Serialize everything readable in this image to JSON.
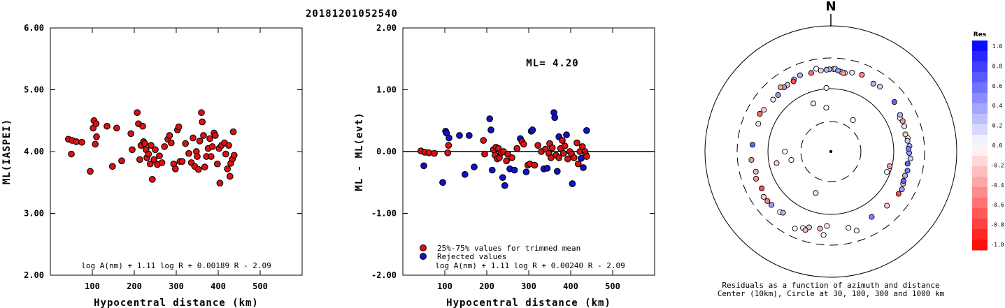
{
  "page": {
    "title": "20181201052540"
  },
  "colors": {
    "accepted": "#dd1111",
    "rejected": "#1111cc",
    "marker_edge": "#000000"
  },
  "chart_data": [
    {
      "id": "left",
      "type": "scatter",
      "xlabel": "Hypocentral distance (km)",
      "ylabel": "ML(IASPEI)",
      "xlim": [
        0,
        600
      ],
      "ylim": [
        2.0,
        6.0
      ],
      "xticks": [
        100,
        200,
        300,
        400,
        500
      ],
      "yticks": [
        2.0,
        3.0,
        4.0,
        5.0,
        6.0
      ],
      "ytick_labels": [
        "2.00",
        "3.00",
        "4.00",
        "5.00",
        "6.00"
      ],
      "formula": "log A(nm) + 1.11 log R + 0.00189 R - 2.09",
      "points": [
        [
          43,
          4.2
        ],
        [
          50,
          3.96
        ],
        [
          52,
          4.18
        ],
        [
          62,
          4.16
        ],
        [
          75,
          4.15
        ],
        [
          95,
          3.68
        ],
        [
          102,
          4.38
        ],
        [
          104,
          4.5
        ],
        [
          107,
          4.12
        ],
        [
          109,
          4.45
        ],
        [
          110,
          4.24
        ],
        [
          135,
          4.41
        ],
        [
          148,
          3.76
        ],
        [
          158,
          4.38
        ],
        [
          170,
          3.85
        ],
        [
          192,
          4.29
        ],
        [
          195,
          4.03
        ],
        [
          207,
          4.63
        ],
        [
          210,
          4.45
        ],
        [
          213,
          3.87
        ],
        [
          216,
          4.1
        ],
        [
          220,
          4.41
        ],
        [
          222,
          4.16
        ],
        [
          225,
          4.13
        ],
        [
          228,
          4.03
        ],
        [
          230,
          3.9
        ],
        [
          234,
          3.96
        ],
        [
          238,
          3.8
        ],
        [
          240,
          4.1
        ],
        [
          243,
          3.55
        ],
        [
          247,
          3.87
        ],
        [
          250,
          4.03
        ],
        [
          255,
          3.79
        ],
        [
          260,
          3.93
        ],
        [
          266,
          3.82
        ],
        [
          272,
          4.08
        ],
        [
          280,
          4.2
        ],
        [
          284,
          4.26
        ],
        [
          288,
          4.14
        ],
        [
          294,
          3.8
        ],
        [
          298,
          3.72
        ],
        [
          303,
          4.35
        ],
        [
          306,
          4.4
        ],
        [
          309,
          3.84
        ],
        [
          314,
          3.84
        ],
        [
          322,
          4.13
        ],
        [
          330,
          3.97
        ],
        [
          336,
          3.82
        ],
        [
          340,
          4.22
        ],
        [
          344,
          3.76
        ],
        [
          348,
          4.0
        ],
        [
          350,
          3.92
        ],
        [
          353,
          3.71
        ],
        [
          356,
          4.17
        ],
        [
          360,
          4.63
        ],
        [
          362,
          4.48
        ],
        [
          365,
          4.26
        ],
        [
          368,
          3.75
        ],
        [
          372,
          3.92
        ],
        [
          376,
          4.05
        ],
        [
          380,
          4.21
        ],
        [
          383,
          3.92
        ],
        [
          386,
          4.08
        ],
        [
          390,
          4.3
        ],
        [
          393,
          4.26
        ],
        [
          398,
          3.8
        ],
        [
          402,
          4.05
        ],
        [
          404,
          3.49
        ],
        [
          408,
          4.1
        ],
        [
          415,
          4.14
        ],
        [
          418,
          3.96
        ],
        [
          422,
          3.72
        ],
        [
          425,
          4.1
        ],
        [
          428,
          3.6
        ],
        [
          430,
          3.81
        ],
        [
          434,
          3.88
        ],
        [
          436,
          4.32
        ],
        [
          438,
          3.94
        ]
      ]
    },
    {
      "id": "middle",
      "type": "scatter",
      "xlabel": "Hypocentral distance (km)",
      "ylabel": "ML - ML(evt)",
      "xlim": [
        0,
        600
      ],
      "ylim": [
        -2.0,
        2.0
      ],
      "xticks": [
        100,
        200,
        300,
        400,
        500
      ],
      "yticks": [
        -2.0,
        -1.0,
        0.0,
        1.0,
        2.0
      ],
      "ytick_labels": [
        "-2.00",
        "-1.00",
        "0.00",
        "1.00",
        "2.00"
      ],
      "zero_line": 0.0,
      "ml_label": "ML= 4.20",
      "formula": "log A(nm) + 1.11 log R + 0.00240 R - 2.09",
      "legend": {
        "accepted_label": "25%-75% values for trimmed mean",
        "rejected_label": "Rejected values"
      },
      "accepted": [
        [
          43,
          0.01
        ],
        [
          52,
          -0.01
        ],
        [
          62,
          -0.02
        ],
        [
          75,
          -0.03
        ],
        [
          107,
          -0.02
        ],
        [
          109,
          0.1
        ],
        [
          192,
          0.18
        ],
        [
          195,
          -0.04
        ],
        [
          216,
          0.03
        ],
        [
          220,
          -0.06
        ],
        [
          222,
          0.07
        ],
        [
          225,
          -0.12
        ],
        [
          228,
          0.05
        ],
        [
          230,
          -0.1
        ],
        [
          234,
          -0.02
        ],
        [
          240,
          0.0
        ],
        [
          247,
          -0.15
        ],
        [
          250,
          -0.04
        ],
        [
          260,
          -0.1
        ],
        [
          272,
          0.05
        ],
        [
          284,
          0.16
        ],
        [
          288,
          0.12
        ],
        [
          298,
          -0.22
        ],
        [
          303,
          -0.2
        ],
        [
          314,
          -0.22
        ],
        [
          322,
          0.1
        ],
        [
          330,
          0.0
        ],
        [
          340,
          0.04
        ],
        [
          348,
          -0.03
        ],
        [
          350,
          0.13
        ],
        [
          353,
          -0.1
        ],
        [
          356,
          0.06
        ],
        [
          365,
          -0.06
        ],
        [
          372,
          -0.1
        ],
        [
          376,
          0.05
        ],
        [
          380,
          0.18
        ],
        [
          383,
          -0.03
        ],
        [
          386,
          0.09
        ],
        [
          393,
          -0.12
        ],
        [
          398,
          0.0
        ],
        [
          402,
          -0.04
        ],
        [
          408,
          -0.1
        ],
        [
          415,
          0.14
        ],
        [
          418,
          -0.2
        ],
        [
          422,
          0.0
        ],
        [
          428,
          0.08
        ],
        [
          434,
          0.0
        ],
        [
          436,
          -0.05
        ],
        [
          438,
          -0.08
        ]
      ],
      "rejected": [
        [
          50,
          -0.23
        ],
        [
          95,
          -0.5
        ],
        [
          102,
          0.33
        ],
        [
          104,
          0.3
        ],
        [
          110,
          0.22
        ],
        [
          135,
          0.26
        ],
        [
          148,
          -0.37
        ],
        [
          158,
          0.26
        ],
        [
          170,
          -0.25
        ],
        [
          207,
          0.53
        ],
        [
          210,
          0.35
        ],
        [
          213,
          -0.3
        ],
        [
          238,
          -0.42
        ],
        [
          243,
          -0.55
        ],
        [
          255,
          -0.28
        ],
        [
          266,
          -0.3
        ],
        [
          280,
          0.21
        ],
        [
          294,
          -0.33
        ],
        [
          306,
          0.33
        ],
        [
          309,
          0.35
        ],
        [
          336,
          -0.28
        ],
        [
          344,
          -0.27
        ],
        [
          360,
          0.63
        ],
        [
          362,
          0.55
        ],
        [
          368,
          -0.32
        ],
        [
          372,
          0.24
        ],
        [
          390,
          0.27
        ],
        [
          404,
          -0.52
        ],
        [
          425,
          -0.11
        ],
        [
          430,
          -0.26
        ],
        [
          438,
          0.34
        ]
      ]
    },
    {
      "id": "polar",
      "type": "scatter",
      "north_label": "N",
      "caption_line1": "Residuals as a function of azimuth and distance",
      "caption_line2": "Center (10km), Circle at 30, 100, 300 and 1000 km",
      "rings_km": [
        10,
        30,
        100,
        300,
        1000
      ],
      "ring_styles": [
        "center",
        "dashed",
        "solid",
        "dashed",
        "solid"
      ],
      "colorbar": {
        "title": "Res",
        "min": -1.0,
        "max": 1.0,
        "labels": [
          "1.0",
          "0.8",
          "0.6",
          "0.4",
          "0.2",
          "0.0",
          "-0.2",
          "-0.4",
          "-0.6",
          "-0.8",
          "-1.0"
        ]
      },
      "points": [
        [
          -36,
          208,
          0.4
        ],
        [
          -28,
          208,
          -0.7
        ],
        [
          -22,
          226,
          0.3
        ],
        [
          -14,
          218,
          -0.6
        ],
        [
          -7,
          222,
          -0.2
        ],
        [
          -3,
          224,
          0.3
        ],
        [
          -1,
          226,
          0.2
        ],
        [
          2,
          228,
          -0.2
        ],
        [
          3,
          230,
          0.2
        ],
        [
          5,
          220,
          0.4
        ],
        [
          7,
          215,
          0.0
        ],
        [
          9,
          208,
          -0.4
        ],
        [
          10,
          211,
          0.0
        ],
        [
          15,
          223,
          0.1
        ],
        [
          22,
          230,
          -0.5
        ],
        [
          32,
          212,
          0.3
        ],
        [
          37,
          220,
          0.2
        ],
        [
          52,
          215,
          0.6
        ],
        [
          62,
          200,
          0.3
        ],
        [
          64,
          190,
          0.0
        ],
        [
          67,
          198,
          -0.4
        ],
        [
          71,
          196,
          0.1
        ],
        [
          77,
          188,
          -0.2
        ],
        [
          80,
          198,
          0.0
        ],
        [
          82,
          194,
          0.2
        ],
        [
          86,
          203,
          0.3
        ],
        [
          88,
          196,
          0.5
        ],
        [
          91,
          200,
          0.4
        ],
        [
          95,
          210,
          0.2
        ],
        [
          99,
          196,
          0.6
        ],
        [
          104,
          204,
          0.5
        ],
        [
          108,
          198,
          0.3
        ],
        [
          112,
          200,
          0.6
        ],
        [
          114,
          205,
          -0.3
        ],
        [
          118,
          214,
          0.4
        ],
        [
          122,
          210,
          -0.7
        ],
        [
          134,
          198,
          -0.2
        ],
        [
          148,
          192,
          0.5
        ],
        [
          162,
          232,
          0.0
        ],
        [
          167,
          200,
          0.0
        ],
        [
          183,
          176,
          -0.1
        ],
        [
          185,
          236,
          0.0
        ],
        [
          188,
          198,
          -0.3
        ],
        [
          196,
          204,
          0.2
        ],
        [
          198,
          228,
          -0.3
        ],
        [
          200,
          220,
          0.0
        ],
        [
          205,
          244,
          0.0
        ],
        [
          218,
          196,
          0.3
        ],
        [
          220,
          205,
          0.0
        ],
        [
          228,
          210,
          0.4
        ],
        [
          232,
          214,
          -0.5
        ],
        [
          236,
          218,
          -0.2
        ],
        [
          242,
          200,
          -0.7
        ],
        [
          250,
          208,
          -0.4
        ],
        [
          255,
          196,
          -0.3
        ],
        [
          264,
          210,
          -0.4
        ],
        [
          275,
          202,
          0.6
        ],
        [
          291,
          196,
          -0.1
        ],
        [
          298,
          214,
          -0.6
        ],
        [
          302,
          204,
          -0.2
        ],
        [
          312,
          196,
          -0.1
        ],
        [
          317,
          194,
          0.4
        ],
        [
          322,
          222,
          -0.4
        ],
        [
          327,
          208,
          -0.3
        ],
        [
          333,
          218,
          0.3
        ],
        [
          350,
          238,
          0.0
        ],
        [
          356,
          106,
          0.0
        ],
        [
          -6,
          60,
          0.0
        ],
        [
          104,
          95,
          -0.4
        ],
        [
          110,
          93,
          0.0
        ],
        [
          -102,
          84,
          -0.2
        ],
        [
          -90,
          64,
          0.0
        ],
        [
          -20,
          75,
          -0.1
        ],
        [
          35,
          48,
          0.0
        ],
        [
          200,
          60,
          0.1
        ],
        [
          258,
          52,
          0.0
        ]
      ]
    }
  ]
}
